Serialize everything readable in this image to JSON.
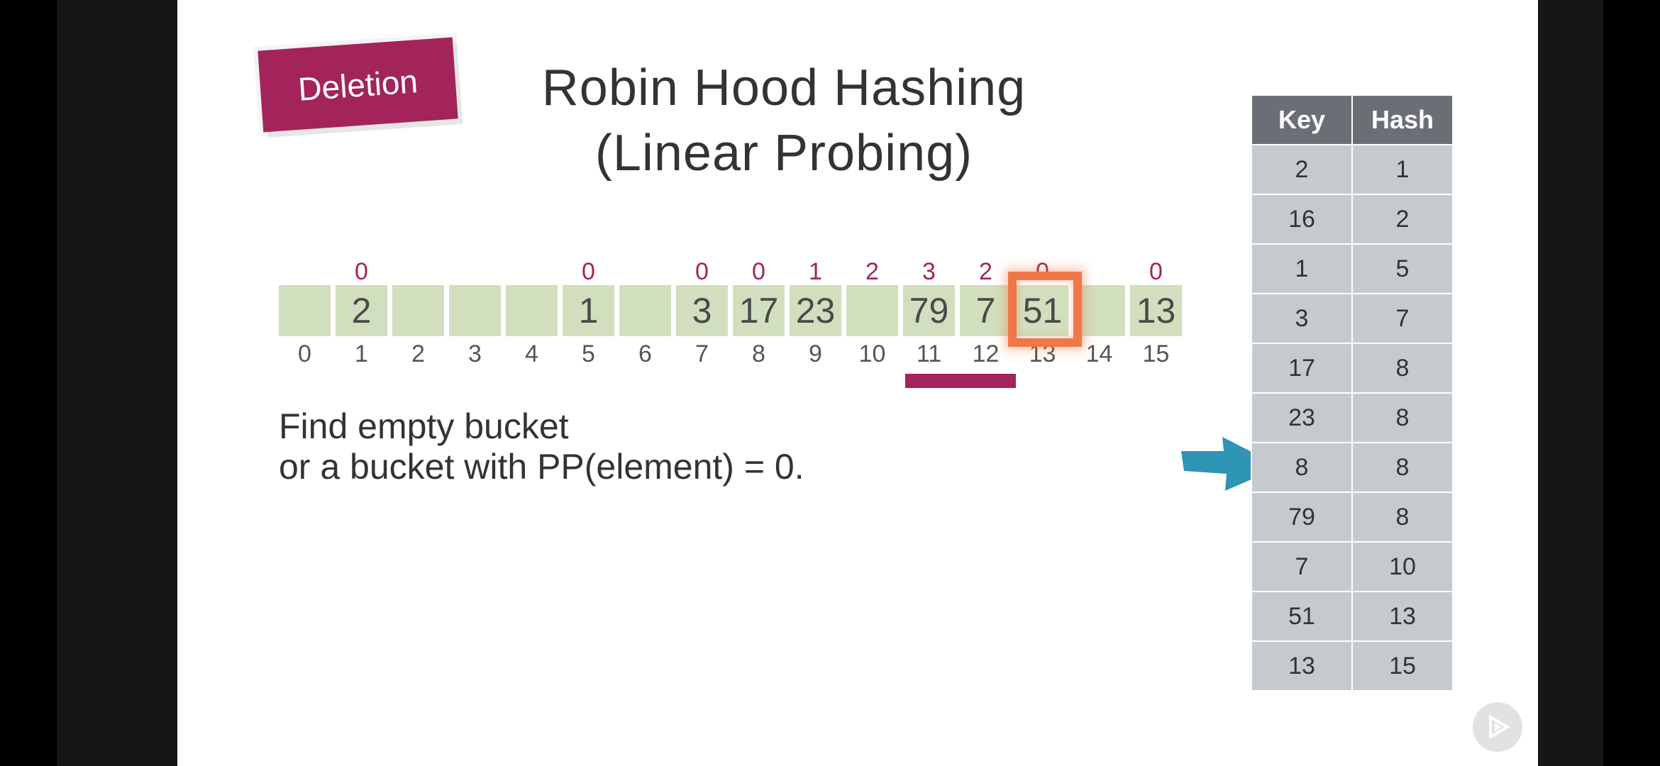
{
  "badge": {
    "label": "Deletion"
  },
  "title": {
    "line1": "Robin Hood Hashing",
    "line2": "(Linear Probing)"
  },
  "buckets": {
    "values": [
      "",
      "2",
      "",
      "",
      "",
      "1",
      "",
      "3",
      "17",
      "23",
      "",
      "79",
      "7",
      "51",
      "",
      "13"
    ],
    "probe_distances": [
      "",
      "0",
      "",
      "",
      "",
      "0",
      "",
      "0",
      "0",
      "1",
      "2",
      "3",
      "2",
      "0",
      "",
      "0"
    ],
    "indices": [
      "0",
      "1",
      "2",
      "3",
      "4",
      "5",
      "6",
      "7",
      "8",
      "9",
      "10",
      "11",
      "12",
      "13",
      "14",
      "15"
    ],
    "highlighted_index": 13,
    "underlined_range": [
      11,
      12
    ]
  },
  "description": {
    "line1": "Find empty bucket",
    "line2": "or a bucket with PP(element) = 0."
  },
  "table": {
    "headers": [
      "Key",
      "Hash"
    ],
    "rows": [
      [
        "2",
        "1"
      ],
      [
        "16",
        "2"
      ],
      [
        "1",
        "5"
      ],
      [
        "3",
        "7"
      ],
      [
        "17",
        "8"
      ],
      [
        "23",
        "8"
      ],
      [
        "8",
        "8"
      ],
      [
        "79",
        "8"
      ],
      [
        "7",
        "10"
      ],
      [
        "51",
        "13"
      ],
      [
        "13",
        "15"
      ]
    ],
    "pointer_row": 6
  },
  "colors": {
    "accent": "#a3245a",
    "bucket": "#d1dfbf",
    "highlight": "#f07848",
    "arrow": "#2e95b4",
    "table_header": "#6b6f75",
    "table_cell": "#c7cacd"
  },
  "icons": {
    "pointer": "arrow-right-icon",
    "player": "play-icon"
  }
}
